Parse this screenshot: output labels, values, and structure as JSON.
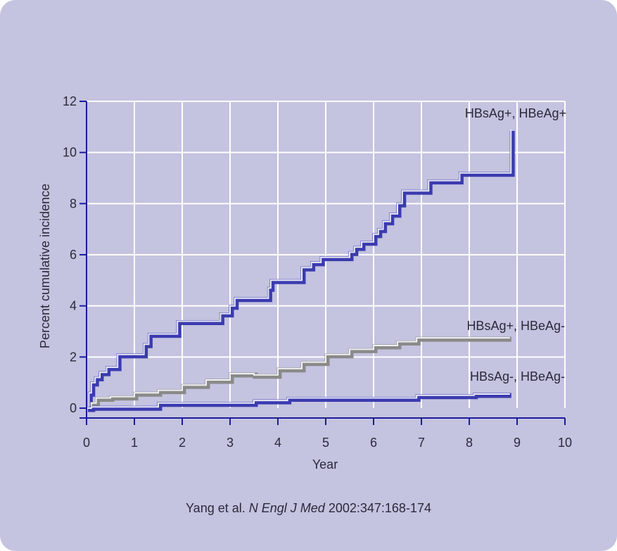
{
  "citation": {
    "authors": "Yang et al.",
    "journal": "N Engl J Med",
    "ref": "2002:347:168-174"
  },
  "chart_data": {
    "type": "line",
    "step": true,
    "xlabel": "Year",
    "ylabel": "Percent cumulative incidence",
    "xlim": [
      0,
      10
    ],
    "ylim": [
      0,
      12
    ],
    "xticks": [
      0,
      1,
      2,
      3,
      4,
      5,
      6,
      7,
      8,
      9,
      10
    ],
    "yticks": [
      0,
      2,
      4,
      6,
      8,
      10,
      12
    ],
    "grid": true,
    "colors": {
      "background": "#c4c3e0",
      "grid": "#ffffff",
      "axis": "#1c1c9a",
      "blue_series": "#3b3bb0",
      "gray_series": "#8a8a8a"
    },
    "series": [
      {
        "name": "HBsAg+, HBeAg+",
        "color": "blue",
        "x": [
          0,
          0.05,
          0.1,
          0.18,
          0.28,
          0.42,
          0.65,
          1.2,
          1.3,
          1.9,
          2.8,
          3.0,
          3.1,
          3.8,
          3.85,
          4.5,
          4.7,
          4.9,
          5.5,
          5.6,
          5.75,
          6.0,
          6.1,
          6.2,
          6.35,
          6.5,
          6.6,
          7.15,
          7.8,
          8.85,
          8.87
        ],
        "y": [
          0,
          0.6,
          1.0,
          1.2,
          1.4,
          1.6,
          2.1,
          2.5,
          2.9,
          3.4,
          3.7,
          4.0,
          4.3,
          4.7,
          5.0,
          5.5,
          5.7,
          5.9,
          6.1,
          6.3,
          6.5,
          6.8,
          7.0,
          7.3,
          7.6,
          8.0,
          8.5,
          8.9,
          9.2,
          9.2,
          10.9
        ]
      },
      {
        "name": "HBsAg+, HBeAg-",
        "color": "gray",
        "x": [
          0,
          0.1,
          0.2,
          0.5,
          1.0,
          1.5,
          2.0,
          2.5,
          3.0,
          3.5,
          4.0,
          4.5,
          5.0,
          5.5,
          6.0,
          6.5,
          6.9,
          8.85
        ],
        "y": [
          0,
          0.2,
          0.4,
          0.45,
          0.6,
          0.7,
          0.9,
          1.1,
          1.35,
          1.3,
          1.55,
          1.8,
          2.1,
          2.3,
          2.45,
          2.6,
          2.75,
          2.75
        ]
      },
      {
        "name": "HBsAg-, HBeAg-",
        "color": "blue",
        "x": [
          0,
          0.1,
          1.5,
          3.5,
          4.2,
          6.9,
          8.1,
          8.85
        ],
        "y": [
          0,
          0.05,
          0.2,
          0.3,
          0.4,
          0.5,
          0.55,
          0.55
        ]
      }
    ]
  }
}
